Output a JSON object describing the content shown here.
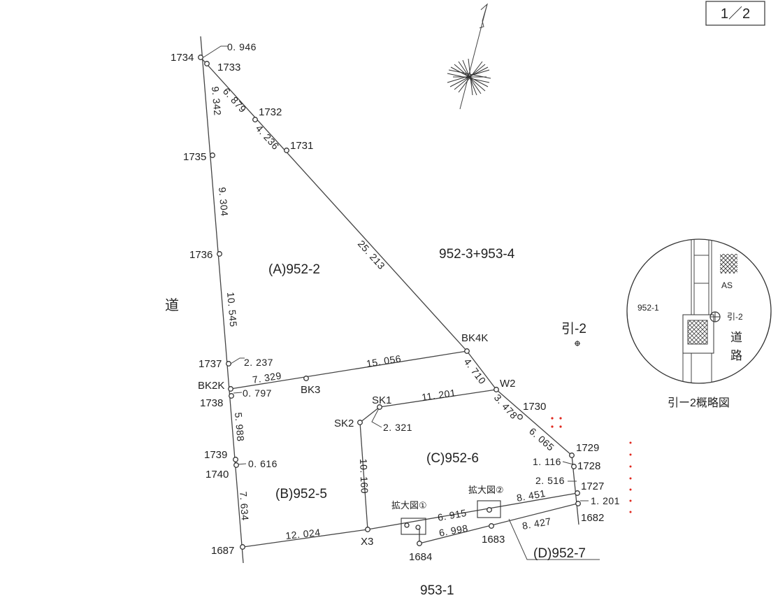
{
  "page_number": "1／2",
  "road_label": "道",
  "neighbor_north": "952-3+953-4",
  "neighbor_south": "953-1",
  "hiki_marker": "引-2",
  "parcels": {
    "a": "(A)952-2",
    "b": "(B)952-5",
    "c": "(C)952-6",
    "d": "(D)952-7"
  },
  "points": {
    "p1734": "1734",
    "p1733": "1733",
    "p1732": "1732",
    "p1731": "1731",
    "p1735": "1735",
    "p1736": "1736",
    "p1737": "1737",
    "pBK2K": "BK2K",
    "p1738": "1738",
    "p1739": "1739",
    "p1740": "1740",
    "p1687": "1687",
    "pBK3": "BK3",
    "pBK4K": "BK4K",
    "pW2": "W2",
    "p1730": "1730",
    "p1729": "1729",
    "p1728": "1728",
    "p1727": "1727",
    "p1682": "1682",
    "pSK1": "SK1",
    "pSK2": "SK2",
    "pX3": "X3",
    "p1684": "1684",
    "p1683": "1683"
  },
  "distances": {
    "d0946": "0. 946",
    "d6879": "6. 879",
    "d9342": "9. 342",
    "d4236": "4. 236",
    "d9304": "9. 304",
    "d25213": "25. 213",
    "d10545": "10. 545",
    "d2237": "2. 237",
    "d15056": "15. 056",
    "d7329": "7. 329",
    "d0797": "0. 797",
    "d4710": "4. 710",
    "d11201": "11. 201",
    "d3478": "3. 478",
    "d5988": "5. 988",
    "d2321": "2. 321",
    "d6065": "6. 065",
    "d0616": "0. 616",
    "d1116": "1. 116",
    "d10160": "10. 160",
    "d2516": "2. 516",
    "d8451": "8. 451",
    "d1201": "1. 201",
    "d7634": "7. 634",
    "d6915": "6. 915",
    "d6998": "6. 998",
    "d8427": "8. 427",
    "d12024": "12. 024"
  },
  "enlarge_labels": {
    "e1": "拡大図①",
    "e2": "拡大図②"
  },
  "inset": {
    "parcel": "952-1",
    "as_label": "AS",
    "hiki": "引-2",
    "road_1": "道",
    "road_2": "路",
    "caption": "引ー2概略図"
  }
}
